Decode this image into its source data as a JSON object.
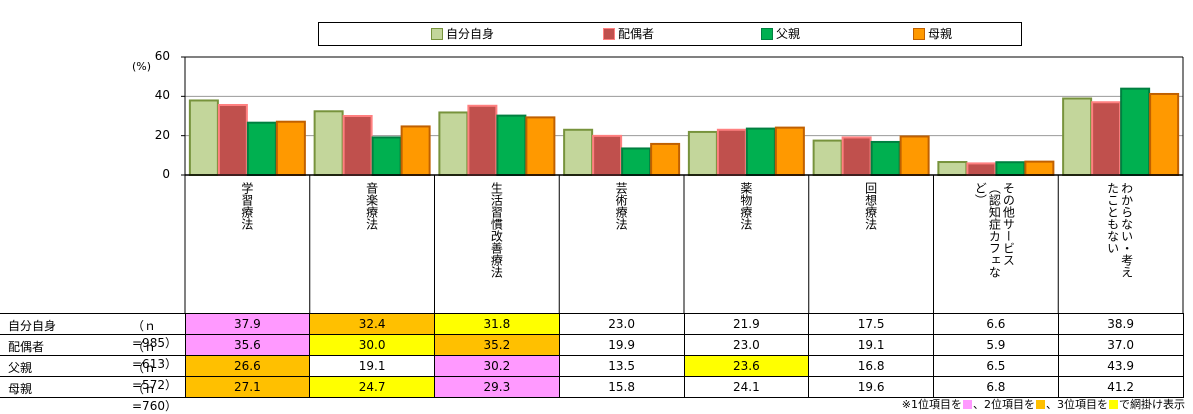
{
  "chart_data": {
    "type": "bar",
    "ylabel": "(%)",
    "ylim": [
      0,
      60
    ],
    "yticks": [
      "0",
      "20",
      "40",
      "60"
    ],
    "categories": [
      "学習療法",
      "音楽療法",
      "生活習慣改善療法",
      "芸術療法",
      "薬物療法",
      "回想療法",
      "その他サービス（認知症カフェなど）",
      "わからない・考えたこともない"
    ],
    "category_columns": [
      [
        "学習療法"
      ],
      [
        "音楽療法"
      ],
      [
        "生活習慣改善療法"
      ],
      [
        "芸術療法"
      ],
      [
        "薬物療法"
      ],
      [
        "回想療法"
      ],
      [
        "その他サービス",
        "（認知症カフェな",
        "ど）"
      ],
      [
        "わからない・考え",
        "たこともない"
      ]
    ],
    "series": [
      {
        "name": "自分自身",
        "n": "（ｎ=985）",
        "color": "#c3d69b",
        "border": "#77933c",
        "values": [
          37.9,
          32.4,
          31.8,
          23.0,
          21.9,
          17.5,
          6.6,
          38.9
        ],
        "labels": [
          "37.9",
          "32.4",
          "31.8",
          "23.0",
          "21.9",
          "17.5",
          "6.6",
          "38.9"
        ],
        "ranks": [
          1,
          2,
          3,
          0,
          0,
          0,
          0,
          0
        ]
      },
      {
        "name": "配偶者",
        "n": "（ｎ=613）",
        "color": "#c0504d",
        "border": "#ff8080",
        "values": [
          35.6,
          30.0,
          35.2,
          19.9,
          23.0,
          19.1,
          5.9,
          37.0
        ],
        "labels": [
          "35.6",
          "30.0",
          "35.2",
          "19.9",
          "23.0",
          "19.1",
          "5.9",
          "37.0"
        ],
        "ranks": [
          1,
          3,
          2,
          0,
          0,
          0,
          0,
          0
        ]
      },
      {
        "name": "父親",
        "n": "（ｎ=572）",
        "color": "#00b050",
        "border": "#008040",
        "values": [
          26.6,
          19.1,
          30.2,
          13.5,
          23.6,
          16.8,
          6.5,
          43.9
        ],
        "labels": [
          "26.6",
          "19.1",
          "30.2",
          "13.5",
          "23.6",
          "16.8",
          "6.5",
          "43.9"
        ],
        "ranks": [
          2,
          0,
          1,
          0,
          3,
          0,
          0,
          0
        ]
      },
      {
        "name": "母親",
        "n": "（ｎ=760）",
        "color": "#ff9900",
        "border": "#c06000",
        "values": [
          27.1,
          24.7,
          29.3,
          15.8,
          24.1,
          19.6,
          6.8,
          41.2
        ],
        "labels": [
          "27.1",
          "24.7",
          "29.3",
          "15.8",
          "24.1",
          "19.6",
          "6.8",
          "41.2"
        ],
        "ranks": [
          2,
          3,
          1,
          0,
          0,
          0,
          0,
          0
        ]
      }
    ],
    "rank_colors": {
      "1": "#ff99ff",
      "2": "#ffc000",
      "3": "#ffff00"
    },
    "grid": true,
    "legend_position": "top"
  },
  "footnote": {
    "prefix": "※1位項目を",
    "mid1": "、2位項目を",
    "mid2": "、3位項目を",
    "suffix": "で網掛け表示"
  }
}
